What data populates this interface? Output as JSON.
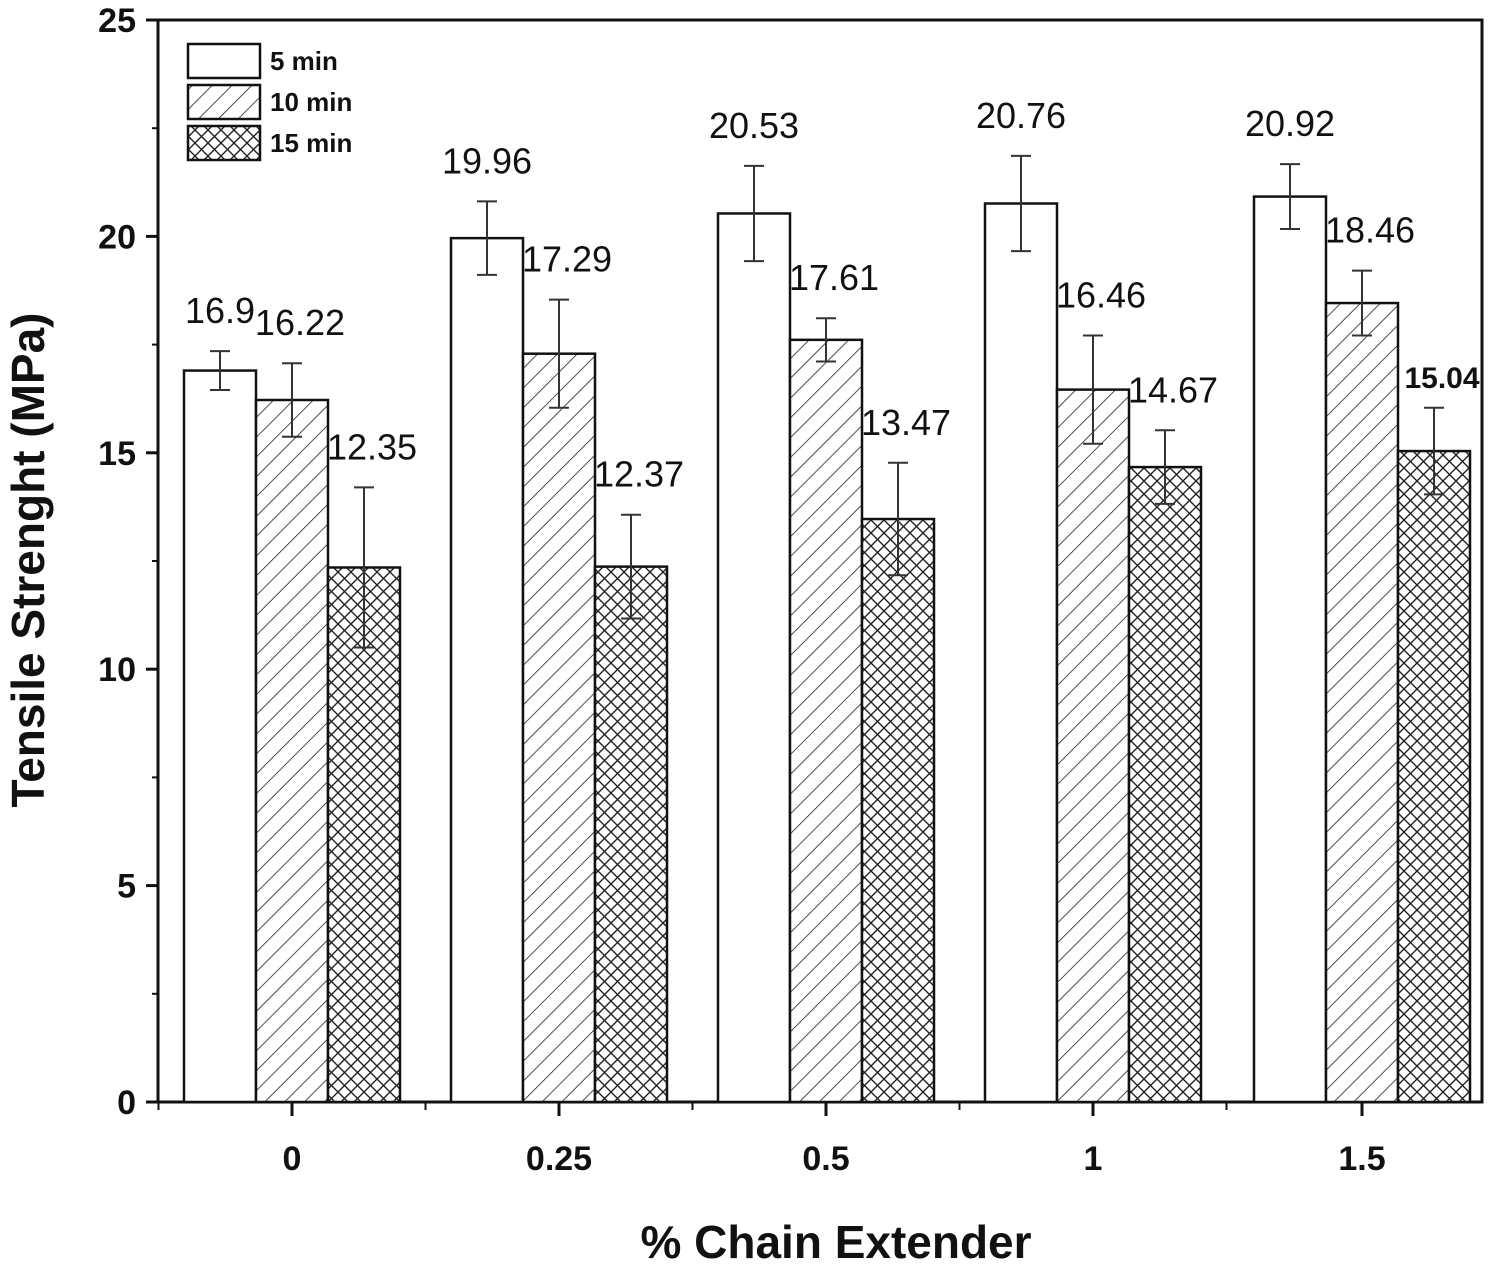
{
  "chart_data": {
    "type": "bar",
    "title": "",
    "xlabel": "% Chain Extender",
    "ylabel": "Tensile Strenght (MPa)",
    "categories": [
      "0",
      "0.25",
      "0.5",
      "1",
      "1.5"
    ],
    "ylim": [
      0,
      25
    ],
    "yticks": [
      0,
      5,
      10,
      15,
      20,
      25
    ],
    "legend_position": "top-left",
    "series": [
      {
        "name": "5 min",
        "pattern": "solid-white",
        "values": [
          16.9,
          19.96,
          20.53,
          20.76,
          20.92
        ],
        "errors": [
          0.45,
          0.85,
          1.1,
          1.1,
          0.75
        ],
        "labels": [
          "16.9",
          "19.96",
          "20.53",
          "20.76",
          "20.92"
        ]
      },
      {
        "name": "10 min",
        "pattern": "diagonal-hatch",
        "values": [
          16.22,
          17.29,
          17.61,
          16.46,
          18.46
        ],
        "errors": [
          0.85,
          1.25,
          0.5,
          1.25,
          0.75
        ],
        "labels": [
          "16.22",
          "17.29",
          "17.61",
          "16.46",
          "18.46"
        ]
      },
      {
        "name": "15 min",
        "pattern": "cross-hatch",
        "values": [
          12.35,
          12.37,
          13.47,
          14.67,
          15.04
        ],
        "errors": [
          1.85,
          1.2,
          1.3,
          0.85,
          1.0
        ],
        "labels": [
          "12.35",
          "12.37",
          "13.47",
          "14.67",
          "15.04"
        ]
      }
    ]
  }
}
